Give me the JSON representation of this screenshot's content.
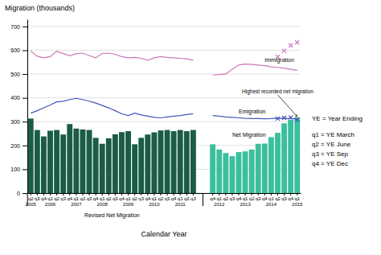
{
  "chart_data": {
    "type": "bar",
    "title": "Migration (thousands)",
    "x_label": "Calendar Year",
    "ylim": [
      0,
      730
    ],
    "yticks": [
      0,
      100,
      200,
      300,
      400,
      500,
      600,
      700
    ],
    "grid": true,
    "categories": [
      "q2\n2005",
      "q3",
      "q4",
      "q1\n2006",
      "q2",
      "q3",
      "q4",
      "q1\n2007",
      "q2",
      "q3",
      "q4",
      "q1\n2008",
      "q2",
      "q3",
      "q4",
      "q1\n2009",
      "q2",
      "q3",
      "q4",
      "q1\n2010",
      "q2",
      "q3",
      "q4",
      "q1\n2011",
      "q2",
      "q3",
      null,
      null,
      "q4",
      "q1\n2012",
      "q2",
      "q3",
      "q4",
      "q1\n2013",
      "q2",
      "q3",
      "q4",
      "q1\n2014",
      "q2",
      "q3",
      "q4",
      "q1\n2015"
    ],
    "series": [
      {
        "type": "bar",
        "color": "#1a5c44",
        "values": [
          313,
          265,
          238,
          262,
          265,
          246,
          290,
          271,
          267,
          265,
          232,
          207,
          230,
          247,
          256,
          260,
          205,
          232,
          246,
          255,
          263,
          265,
          260,
          265,
          260,
          265,
          null,
          null,
          null,
          null,
          null,
          null,
          null,
          null,
          null,
          null,
          null,
          null,
          null,
          null,
          null,
          null
        ]
      },
      {
        "type": "bar",
        "color": "#3bbf9e",
        "values": [
          null,
          null,
          null,
          null,
          null,
          null,
          null,
          null,
          null,
          null,
          null,
          null,
          null,
          null,
          null,
          null,
          null,
          null,
          null,
          null,
          null,
          null,
          null,
          null,
          null,
          null,
          null,
          null,
          205,
          183,
          168,
          155,
          172,
          175,
          183,
          207,
          208,
          235,
          253,
          293,
          308,
          318
        ]
      },
      {
        "type": "line",
        "color": "#cc77bb",
        "values": [
          597,
          575,
          568,
          573,
          596,
          586,
          577,
          586,
          588,
          578,
          568,
          586,
          588,
          583,
          573,
          568,
          570,
          566,
          558,
          568,
          573,
          570,
          568,
          566,
          564,
          558,
          null,
          null,
          496,
          498,
          500,
          520,
          538,
          542,
          540,
          538,
          535,
          530,
          528,
          524,
          520,
          516
        ]
      },
      {
        "type": "scatter",
        "marker": "x",
        "color": "#cc77bb",
        "values": [
          null,
          null,
          null,
          null,
          null,
          null,
          null,
          null,
          null,
          null,
          null,
          null,
          null,
          null,
          null,
          null,
          null,
          null,
          null,
          null,
          null,
          null,
          null,
          null,
          null,
          null,
          null,
          null,
          null,
          null,
          null,
          null,
          null,
          null,
          null,
          null,
          null,
          null,
          572,
          598,
          620,
          633
        ]
      },
      {
        "type": "line",
        "color": "#4455bb",
        "values": [
          336,
          346,
          358,
          370,
          383,
          386,
          393,
          398,
          393,
          386,
          378,
          368,
          358,
          346,
          333,
          326,
          336,
          328,
          323,
          318,
          316,
          320,
          323,
          326,
          330,
          333,
          null,
          null,
          326,
          323,
          320,
          318,
          316,
          314,
          313,
          313,
          312,
          313,
          315,
          314,
          313,
          311
        ]
      },
      {
        "type": "scatter",
        "marker": "x",
        "color": "#4455bb",
        "values": [
          null,
          null,
          null,
          null,
          null,
          null,
          null,
          null,
          null,
          null,
          null,
          null,
          null,
          null,
          null,
          null,
          null,
          null,
          null,
          null,
          null,
          null,
          null,
          null,
          null,
          null,
          null,
          null,
          null,
          null,
          null,
          null,
          null,
          null,
          null,
          null,
          null,
          null,
          313,
          316,
          318,
          308
        ]
      }
    ],
    "annotations": [
      {
        "text": "Revised Net Migration"
      },
      {
        "text": "Immigration"
      },
      {
        "text": "Emigration"
      },
      {
        "text": "Net Migration"
      },
      {
        "text": "Highest recorded net migration"
      }
    ],
    "notes": [
      "YE = Year Ending",
      "q1 = YE March",
      "q2 = YE June",
      "q3 = YE Sep",
      "q4 = YE Dec"
    ]
  }
}
